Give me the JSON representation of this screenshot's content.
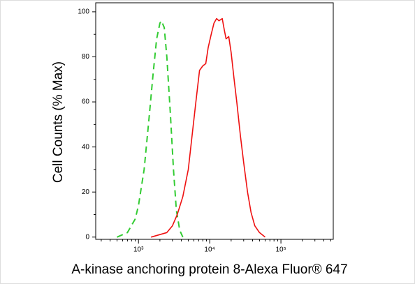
{
  "chart_data": {
    "type": "line",
    "xlabel": "A-kinase anchoring protein 8-Alexa Fluor® 647",
    "ylabel": "Cell Counts (% Max)",
    "xscale": "log",
    "xlim": [
      251,
      543000
    ],
    "ylim": [
      -1,
      104
    ],
    "xticks": [
      {
        "value": 1000,
        "label": "10³"
      },
      {
        "value": 10000,
        "label": "10⁴"
      },
      {
        "value": 100000,
        "label": "10⁵"
      }
    ],
    "xminorticks": [
      300,
      400,
      500,
      600,
      700,
      800,
      900,
      2000,
      3000,
      4000,
      5000,
      6000,
      7000,
      8000,
      9000,
      20000,
      30000,
      40000,
      50000,
      60000,
      70000,
      80000,
      90000,
      200000,
      300000,
      400000,
      500000
    ],
    "yticks": [
      0,
      20,
      40,
      60,
      80,
      100
    ],
    "yminorticks": [
      10,
      30,
      50,
      70,
      90
    ],
    "series": [
      {
        "color": "#33cc33",
        "dash": true,
        "x": [
          500,
          700,
          900,
          1000,
          1200,
          1400,
          1600,
          1800,
          2000,
          2100,
          2300,
          2500,
          2800,
          3100,
          3400,
          3800,
          4200
        ],
        "values": [
          0,
          2,
          8,
          14,
          30,
          52,
          72,
          88,
          95,
          96,
          93,
          80,
          55,
          30,
          12,
          3,
          0
        ]
      },
      {
        "color": "#ee1111",
        "dash": false,
        "x": [
          1500,
          2500,
          3000,
          3500,
          4200,
          5000,
          5800,
          6500,
          7200,
          8000,
          8800,
          9500,
          10500,
          11500,
          12500,
          13500,
          15000,
          16000,
          17000,
          18500,
          20000,
          22000,
          24000,
          27000,
          30000,
          34000,
          38000,
          43000,
          50000,
          60000
        ],
        "values": [
          0,
          2,
          5,
          10,
          18,
          30,
          48,
          62,
          74,
          76,
          77,
          84,
          90,
          95,
          97,
          96,
          97,
          92,
          88,
          89,
          82,
          70,
          60,
          45,
          33,
          20,
          11,
          5,
          2,
          0
        ]
      }
    ]
  }
}
